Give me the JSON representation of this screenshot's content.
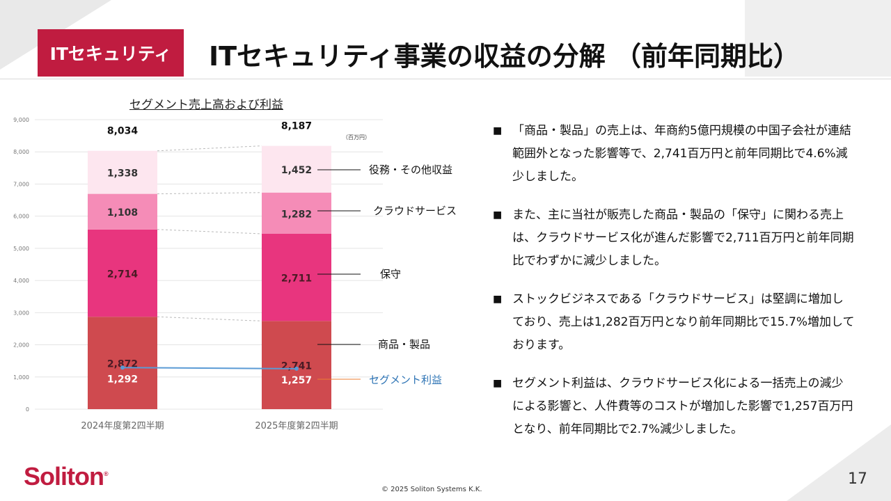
{
  "header": {
    "tag": "ITセキュリティ",
    "title": "ITセキュリティ事業の収益の分解 （前年同期比）"
  },
  "chart": {
    "title": "セグメント売上高および利益",
    "unit": "（百万円）"
  },
  "chart_data": {
    "type": "bar",
    "stacked": true,
    "categories": [
      "2024年度第2四半期",
      "2025年度第2四半期"
    ],
    "series": [
      {
        "name": "商品・製品",
        "values": [
          2872,
          2741
        ],
        "color": "#cf4a4f"
      },
      {
        "name": "保守",
        "values": [
          2714,
          2711
        ],
        "color": "#e8357e"
      },
      {
        "name": "クラウドサービス",
        "values": [
          1108,
          1282
        ],
        "color": "#f58cb7"
      },
      {
        "name": "役務・その他収益",
        "values": [
          1338,
          1452
        ],
        "color": "#fde6ef"
      }
    ],
    "totals": [
      "8,034",
      "8,187"
    ],
    "value_labels": [
      [
        "2,872",
        "2,714",
        "1,108",
        "1,338"
      ],
      [
        "2,741",
        "2,711",
        "1,282",
        "1,452"
      ]
    ],
    "line": {
      "name": "セグメント利益",
      "values": [
        1292,
        1257
      ],
      "labels": [
        "1,292",
        "1,257"
      ],
      "color": "#5b9bd5"
    },
    "yticks": [
      "0",
      "1,000",
      "2,000",
      "3,000",
      "4,000",
      "5,000",
      "6,000",
      "7,000",
      "8,000",
      "9,000"
    ],
    "ylim": [
      0,
      9000
    ],
    "grid": true
  },
  "bullets": [
    "「商品・製品」の売上は、年商約5億円規模の中国子会社が連結範囲外となった影響等で、2,741百万円と前年同期比で4.6%減少しました。",
    "また、主に当社が販売した商品・製品の「保守」に関わる売上は、クラウドサービス化が進んだ影響で2,711百万円と前年同期比でわずかに減少しました。",
    "ストックビジネスである「クラウドサービス」は堅調に増加しており、売上は1,282百万円となり前年同期比で15.7%増加しております。",
    "セグメント利益は、クラウドサービス化による一括売上の減少による影響と、人件費等のコストが増加した影響で1,257百万円となり、前年同期比で2.7%減少しました。"
  ],
  "footer": {
    "logo": "Soliton",
    "logo_mark": "®",
    "copyright": "© 2025 Soliton Systems K.K.",
    "page": "17"
  },
  "colors": {
    "accent": "#c01c40"
  }
}
